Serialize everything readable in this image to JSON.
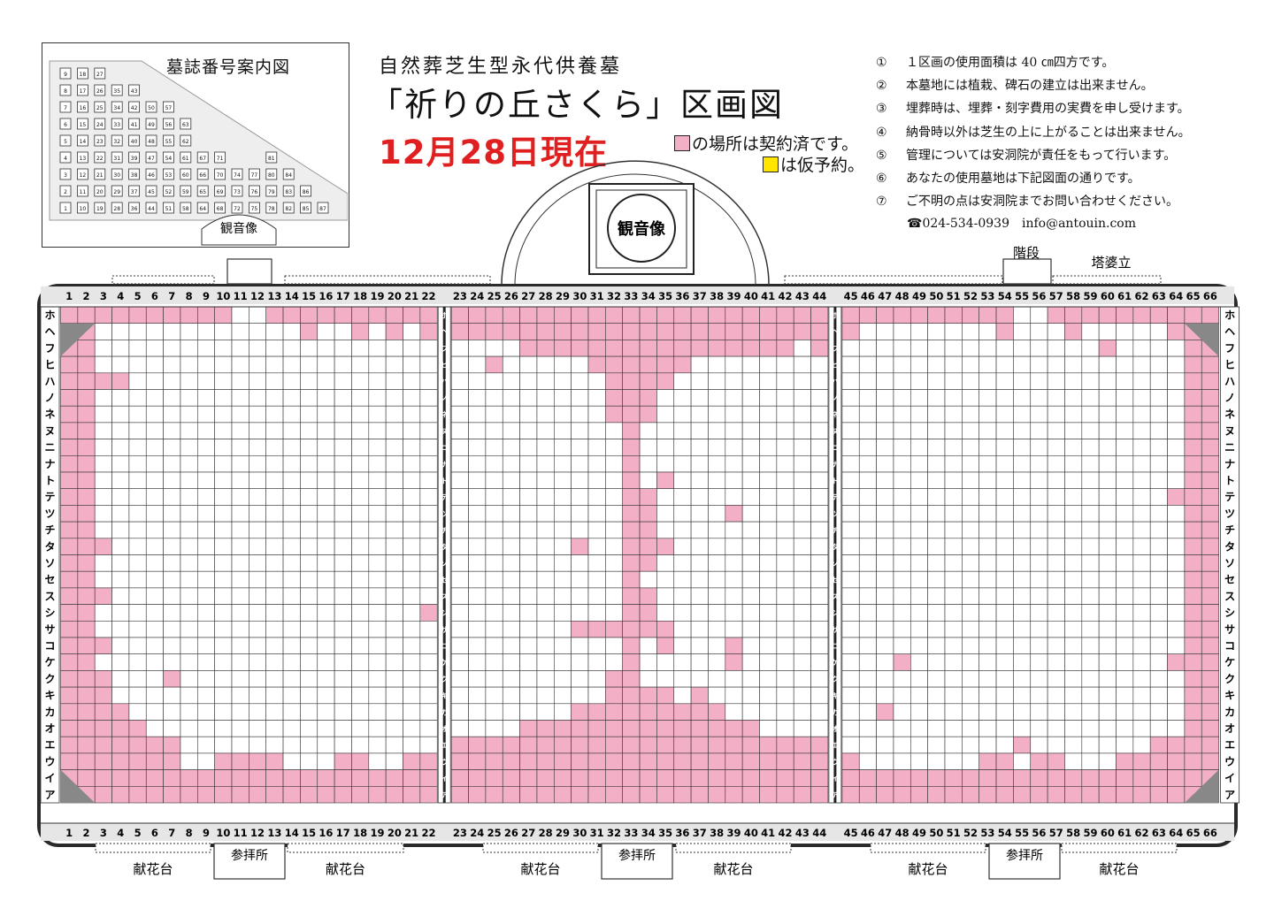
{
  "guide": {
    "title": "墓誌番号案内図",
    "kannon": "観音像",
    "columns": [
      [
        "9",
        "8",
        "7",
        "6",
        "5",
        "4",
        "3",
        "2",
        "1"
      ],
      [
        "18",
        "17",
        "16",
        "15",
        "14",
        "13",
        "12",
        "11",
        "10"
      ],
      [
        "27",
        "26",
        "25",
        "24",
        "23",
        "22",
        "21",
        "20",
        "19"
      ],
      [
        "35",
        "34",
        "33",
        "32",
        "31",
        "30",
        "29",
        "28"
      ],
      [
        "43",
        "42",
        "41",
        "40",
        "39",
        "38",
        "37",
        "36"
      ],
      [
        "50",
        "49",
        "48",
        "47",
        "46",
        "45",
        "44"
      ],
      [
        "57",
        "56",
        "55",
        "54",
        "53",
        "52",
        "51"
      ],
      [
        "63",
        "62",
        "61",
        "60",
        "59",
        "58"
      ],
      [
        "67",
        "66",
        "65",
        "64"
      ],
      [
        "71",
        "70",
        "69",
        "68"
      ],
      [
        "74",
        "73",
        "72"
      ],
      [
        "77",
        "76",
        "75"
      ],
      [
        "81",
        "80",
        "79",
        "78"
      ],
      [
        "84",
        "83",
        "82"
      ],
      [
        "86",
        "85"
      ],
      [
        "87"
      ]
    ]
  },
  "header": {
    "subtitle": "自然葬芝生型永代供養墓",
    "title": "「祈りの丘さくら」区画図",
    "date": "12月28日現在",
    "legend_contracted": "の場所は契約済です。",
    "legend_reserved": "は仮予約。"
  },
  "notes": [
    {
      "num": "①",
      "text": "１区画の使用面積は 40 ㎝四方です。"
    },
    {
      "num": "②",
      "text": "本墓地には植栽、碑石の建立は出来ません。"
    },
    {
      "num": "③",
      "text": "埋葬時は、埋葬・刻字費用の実費を申し受けます。"
    },
    {
      "num": "④",
      "text": "納骨時以外は芝生の上に上がることは出来ません。"
    },
    {
      "num": "⑤",
      "text": "管理については安洞院が責任をもって行います。"
    },
    {
      "num": "⑥",
      "text": "あなたの使用墓地は下記図面の通りです。"
    },
    {
      "num": "⑦",
      "text": "ご不明の点は安洞院までお問い合わせください。"
    }
  ],
  "contact": "☎024-534-0939　info@antouin.com",
  "labels": {
    "kannon": "観音像",
    "stairs": "階段",
    "stupa": "塔婆立",
    "offering": "献花台",
    "worship": "参拝所"
  },
  "rows": [
    "ホ",
    "ヘ",
    "フ",
    "ヒ",
    "ハ",
    "ノ",
    "ネ",
    "ヌ",
    "ニ",
    "ナ",
    "ト",
    "テ",
    "ツ",
    "チ",
    "タ",
    "ソ",
    "セ",
    "ス",
    "シ",
    "サ",
    "コ",
    "ケ",
    "ク",
    "キ",
    "カ",
    "オ",
    "エ",
    "ウ",
    "イ",
    "ア"
  ],
  "columns_count": 66,
  "colors": {
    "contracted": "#f2afc6",
    "reserved": "#ffe600",
    "frame": "#2a2a2a",
    "corner": "#888888",
    "header_bg": "#e6e6e6",
    "date": "#e02020"
  },
  "sold_extra": {
    "ホ": [
      1,
      2,
      3,
      4,
      5,
      6,
      7,
      8,
      9,
      10,
      13,
      14,
      15,
      16,
      17,
      18,
      19,
      20,
      21,
      22,
      23,
      24,
      25,
      26,
      27,
      28,
      29,
      30,
      31,
      32,
      33,
      34,
      35,
      36,
      37,
      38,
      39,
      40,
      41,
      42,
      43,
      44,
      45,
      46,
      47,
      48,
      49,
      50,
      51,
      52,
      53,
      54,
      57,
      58,
      59,
      60,
      61,
      62,
      63,
      64,
      65,
      66
    ],
    "ヘ": [
      15,
      18,
      20,
      22,
      23,
      24,
      25,
      26,
      27,
      28,
      29,
      30,
      31,
      32,
      33,
      34,
      35,
      36,
      37,
      38,
      39,
      40,
      41,
      42,
      43,
      44,
      45,
      54,
      58,
      64
    ],
    "フ": [
      27,
      28,
      29,
      30,
      31,
      32,
      33,
      34,
      35,
      36,
      37,
      38,
      39,
      40,
      41,
      42,
      44,
      60
    ],
    "ヒ": [
      25,
      31,
      32,
      33,
      34,
      35,
      36
    ],
    "ハ": [
      3,
      4,
      32,
      33,
      34,
      35
    ],
    "ノ": [
      32,
      33,
      34
    ],
    "ネ": [
      32,
      33,
      34
    ],
    "ヌ": [
      33
    ],
    "ニ": [
      33
    ],
    "ナ": [
      33
    ],
    "ト": [
      33,
      35
    ],
    "テ": [
      33,
      34,
      64
    ],
    "ツ": [
      33,
      34,
      39
    ],
    "チ": [
      33,
      34
    ],
    "タ": [
      3,
      30,
      33,
      34,
      35
    ],
    "ソ": [
      33,
      34
    ],
    "セ": [
      33
    ],
    "ス": [
      3,
      33,
      34
    ],
    "シ": [
      22,
      33,
      34
    ],
    "サ": [
      30,
      31,
      32,
      33,
      34,
      35
    ],
    "コ": [
      3,
      33,
      35,
      39
    ],
    "ケ": [
      33,
      39,
      48,
      64
    ],
    "ク": [
      3,
      7,
      32,
      33
    ],
    "キ": [
      3,
      32,
      33,
      34,
      35,
      37
    ],
    "カ": [
      3,
      4,
      30,
      31,
      32,
      33,
      34,
      35,
      36,
      37,
      38,
      47
    ],
    "オ": [
      3,
      4,
      5,
      27,
      28,
      29,
      30,
      31,
      32,
      33,
      34,
      35,
      36,
      37,
      38,
      39,
      40
    ],
    "エ": [
      3,
      4,
      5,
      6,
      7,
      23,
      24,
      25,
      26,
      27,
      28,
      29,
      30,
      31,
      32,
      33,
      34,
      35,
      36,
      37,
      38,
      39,
      40,
      41,
      42,
      43,
      44,
      55,
      63,
      64
    ],
    "ウ": [
      3,
      4,
      5,
      6,
      7,
      10,
      11,
      12,
      13,
      17,
      18,
      21,
      22,
      23,
      24,
      25,
      26,
      27,
      28,
      29,
      30,
      31,
      32,
      33,
      34,
      35,
      36,
      37,
      38,
      39,
      40,
      41,
      42,
      43,
      44,
      45,
      53,
      54,
      56,
      57,
      61,
      62,
      63,
      64
    ],
    "イ": [],
    "ア": []
  }
}
